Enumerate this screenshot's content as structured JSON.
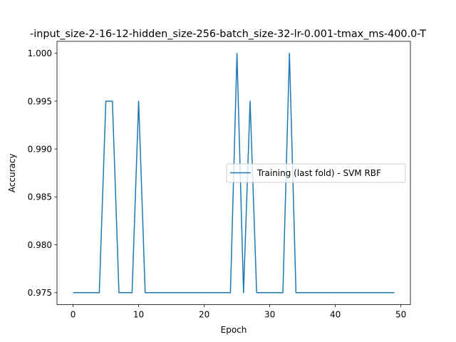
{
  "chart_data": {
    "type": "line",
    "title": "-input_size-2-16-12-hidden_size-256-batch_size-32-lr-0.001-tmax_ms-400.0-T",
    "xlabel": "Epoch",
    "ylabel": "Accuracy",
    "xlim": [
      -2.45,
      51.45
    ],
    "ylim": [
      0.97375,
      1.00125
    ],
    "xticks": [
      0,
      10,
      20,
      30,
      40,
      50
    ],
    "xtick_labels": [
      "0",
      "10",
      "20",
      "30",
      "40",
      "50"
    ],
    "yticks": [
      0.975,
      0.98,
      0.985,
      0.99,
      0.995,
      1.0
    ],
    "ytick_labels": [
      "0.975",
      "0.980",
      "0.985",
      "0.990",
      "0.995",
      "1.000"
    ],
    "grid": false,
    "legend_position": "center-right",
    "series": [
      {
        "name": "Training (last fold) - SVM RBF",
        "color": "#1f77b4",
        "x": [
          0,
          1,
          2,
          3,
          4,
          5,
          6,
          7,
          8,
          9,
          10,
          11,
          12,
          13,
          14,
          15,
          16,
          17,
          18,
          19,
          20,
          21,
          22,
          23,
          24,
          25,
          26,
          27,
          28,
          29,
          30,
          31,
          32,
          33,
          34,
          35,
          36,
          37,
          38,
          39,
          40,
          41,
          42,
          43,
          44,
          45,
          46,
          47,
          48,
          49
        ],
        "values": [
          0.975,
          0.975,
          0.975,
          0.975,
          0.975,
          0.995,
          0.995,
          0.975,
          0.975,
          0.975,
          0.995,
          0.975,
          0.975,
          0.975,
          0.975,
          0.975,
          0.975,
          0.975,
          0.975,
          0.975,
          0.975,
          0.975,
          0.975,
          0.975,
          0.975,
          1.0,
          0.975,
          0.995,
          0.975,
          0.975,
          0.975,
          0.975,
          0.975,
          1.0,
          0.975,
          0.975,
          0.975,
          0.975,
          0.975,
          0.975,
          0.975,
          0.975,
          0.975,
          0.975,
          0.975,
          0.975,
          0.975,
          0.975,
          0.975,
          0.975
        ]
      }
    ]
  }
}
